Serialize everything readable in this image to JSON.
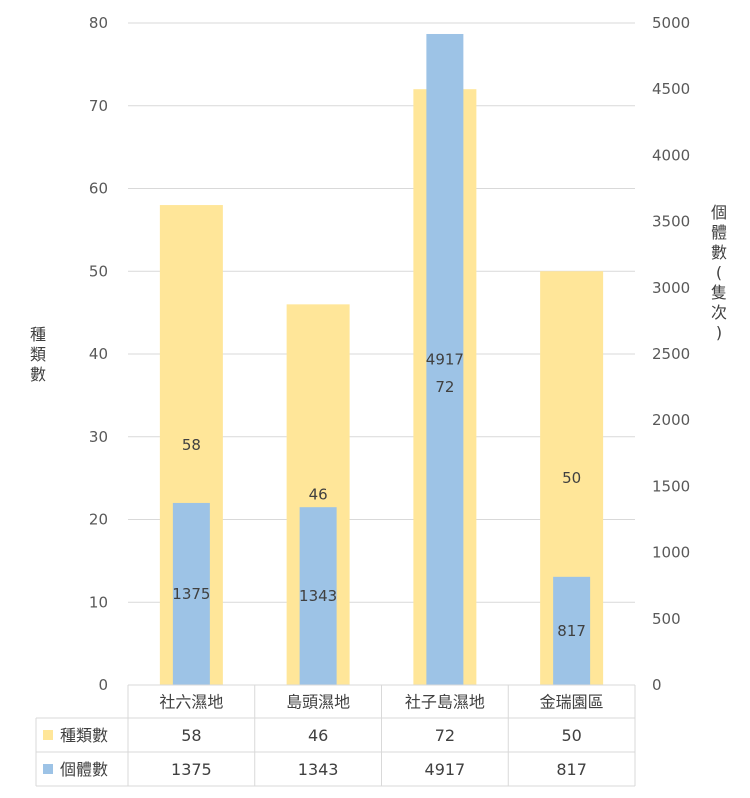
{
  "chart_data": {
    "type": "bar",
    "categories": [
      "社六濕地",
      "島頭濕地",
      "社子島濕地",
      "金瑞園區"
    ],
    "series": [
      {
        "name": "種類數",
        "values": [
          58,
          46,
          72,
          50
        ],
        "axis": "left",
        "color": "#FFE699"
      },
      {
        "name": "個體數",
        "values": [
          1375,
          1343,
          4917,
          817
        ],
        "axis": "right",
        "color": "#9DC3E6"
      }
    ],
    "ylabel": "種類數",
    "ylabel_right": "個體數(隻次)",
    "ylim": [
      0,
      80
    ],
    "ylim_right": [
      0,
      5000
    ],
    "yticks": [
      0,
      10,
      20,
      30,
      40,
      50,
      60,
      70,
      80
    ],
    "yticks_right": [
      0,
      500,
      1000,
      1500,
      2000,
      2500,
      3000,
      3500,
      4000,
      4500,
      5000
    ],
    "grid": true,
    "data_table": true
  }
}
